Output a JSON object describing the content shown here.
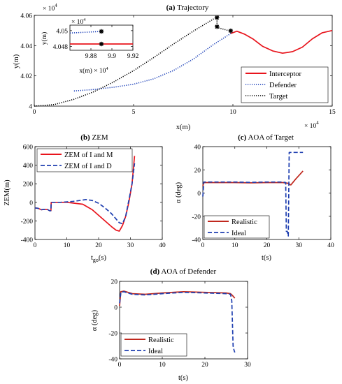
{
  "colors": {
    "interceptor": "#e8141c",
    "defender": "#1a3fb8",
    "target": "#000000",
    "realistic": "#c0281e",
    "ideal": "#1f3fb0"
  },
  "chart_data": [
    {
      "id": "a",
      "type": "line",
      "title_tag": "(a)",
      "title": "Trajectory",
      "xlabel": "x(m)",
      "ylabel": "y(m)",
      "x_multiplier": "× 10",
      "x_exponent": "4",
      "y_multiplier": "× 10",
      "y_exponent": "4",
      "xlim": [
        0,
        15
      ],
      "ylim": [
        4.0,
        4.06
      ],
      "xticks": [
        "0",
        "5",
        "10",
        "15"
      ],
      "yticks": [
        "4",
        "4.02",
        "4.04",
        "4.06"
      ],
      "legend_position": "lower-right",
      "series": [
        {
          "name": "Interceptor",
          "color": "#e8141c",
          "style": "solid",
          "x": [
            9.89,
            10.2,
            10.6,
            11.0,
            11.5,
            12.0,
            12.5,
            13.0,
            13.5,
            14.0,
            14.5,
            15.0
          ],
          "y": [
            4.048,
            4.0495,
            4.0475,
            4.0445,
            4.0395,
            4.0365,
            4.035,
            4.036,
            4.039,
            4.0445,
            4.0485,
            4.05
          ]
        },
        {
          "name": "Defender",
          "color": "#1a3fb8",
          "style": "dotted",
          "x": [
            2.0,
            3.0,
            4.0,
            5.0,
            6.0,
            7.0,
            8.0,
            9.0,
            9.89
          ],
          "y": [
            4.01,
            4.011,
            4.0125,
            4.0145,
            4.018,
            4.0235,
            4.031,
            4.0405,
            4.048
          ]
        },
        {
          "name": "Target",
          "color": "#000000",
          "style": "dotted",
          "x": [
            0.0,
            1.0,
            2.0,
            3.0,
            4.0,
            5.0,
            6.0,
            7.0,
            8.0,
            9.2,
            9.2,
            9.89
          ],
          "y": [
            4.0,
            4.001,
            4.0045,
            4.0095,
            4.016,
            4.0235,
            4.032,
            4.041,
            4.0495,
            4.059,
            4.052,
            4.0495
          ]
        }
      ],
      "markers": [
        {
          "x": 9.2,
          "y": 4.0585
        },
        {
          "x": 9.2,
          "y": 4.0525
        },
        {
          "x": 9.89,
          "y": 4.0498
        }
      ],
      "inset": {
        "xlabel": "x(m)",
        "ylabel": "y(m)",
        "x_multiplier": "× 10",
        "x_exponent": "4",
        "y_multiplier": "× 10",
        "y_exponent": "4",
        "xlim": [
          9.86,
          9.92
        ],
        "ylim": [
          4.0475,
          4.0507
        ],
        "xticks": [
          "9.88",
          "9.9",
          "9.92"
        ],
        "yticks": [
          "4.048",
          "4.05"
        ],
        "series": [
          {
            "color": "#1a3fb8",
            "style": "dotted",
            "x": [
              9.86,
              9.89
            ],
            "y": [
              4.0497,
              4.0499
            ]
          },
          {
            "color": "#e8141c",
            "style": "solid",
            "x": [
              9.86,
              9.92
            ],
            "y": [
              4.0483,
              4.0483
            ]
          }
        ],
        "markers": [
          {
            "x": 9.89,
            "y": 4.0499
          },
          {
            "x": 9.89,
            "y": 4.0483
          }
        ]
      }
    },
    {
      "id": "b",
      "type": "line",
      "title_tag": "(b)",
      "title": "ZEM",
      "xlabel_main": "t",
      "xlabel_sub": "go",
      "xlabel_tail": "(s)",
      "ylabel": "ZEM(m)",
      "xlim": [
        0,
        40
      ],
      "ylim": [
        -400,
        600
      ],
      "xticks": [
        "0",
        "10",
        "20",
        "30",
        "40"
      ],
      "yticks": [
        "-400",
        "-200",
        "0",
        "200",
        "400",
        "600"
      ],
      "legend_position": "top-left",
      "series": [
        {
          "name": "ZEM of I and M",
          "color": "#e8141c",
          "style": "solid",
          "x": [
            0,
            1,
            2,
            3,
            4,
            4.6,
            5,
            5.1,
            6,
            10,
            15,
            18,
            20,
            22,
            24,
            25.5,
            26.5,
            27.5,
            28.5,
            29.5,
            30.5,
            31.3
          ],
          "y": [
            -60,
            -65,
            -80,
            -75,
            -78,
            -90,
            -90,
            0,
            0,
            0,
            -20,
            -80,
            -140,
            -200,
            -260,
            -300,
            -310,
            -250,
            -150,
            0,
            200,
            500
          ]
        },
        {
          "name": "ZEM of I and D",
          "color": "#1f3fb0",
          "style": "dashed",
          "x": [
            0,
            1,
            2,
            3,
            4,
            4.6,
            5,
            5.1,
            8,
            12,
            16,
            18,
            20,
            22,
            24,
            25.5,
            26.5,
            27.5,
            28.5,
            29.5,
            30.5,
            31.3
          ],
          "y": [
            -60,
            -65,
            -80,
            -75,
            -78,
            -90,
            -90,
            0,
            0,
            10,
            30,
            20,
            -10,
            -60,
            -120,
            -180,
            -220,
            -230,
            -150,
            20,
            200,
            420
          ]
        }
      ]
    },
    {
      "id": "c",
      "type": "line",
      "title_tag": "(c)",
      "title": "AOA of Target",
      "xlabel": "t(s)",
      "ylabel": "α (deg)",
      "xlim": [
        0,
        40
      ],
      "ylim": [
        -40,
        40
      ],
      "xticks": [
        "0",
        "10",
        "20",
        "30",
        "40"
      ],
      "yticks": [
        "-40",
        "-20",
        "0",
        "20",
        "40"
      ],
      "legend_position": "lower-left",
      "series": [
        {
          "name": "Realistic",
          "color": "#c0281e",
          "style": "solid",
          "x": [
            0,
            0.3,
            5,
            10,
            15,
            20,
            25,
            26.5,
            27.5,
            29,
            31.3
          ],
          "y": [
            6,
            9,
            9,
            9,
            8.8,
            9,
            9,
            8.5,
            7,
            12,
            19
          ]
        },
        {
          "name": "Ideal",
          "color": "#1f3fb0",
          "style": "dashed",
          "x": [
            0,
            0.3,
            5,
            10,
            15,
            20,
            25,
            25.9,
            26.1,
            26.4,
            26.7,
            27,
            29,
            31.3
          ],
          "y": [
            -3,
            9.5,
            9.5,
            9.5,
            9.2,
            9.5,
            9.5,
            9,
            -33,
            -33,
            -37,
            35,
            35,
            35
          ]
        }
      ]
    },
    {
      "id": "d",
      "type": "line",
      "title_tag": "(d)",
      "title": "AOA of Defender",
      "xlabel": "t(s)",
      "ylabel": "α (deg)",
      "xlim": [
        0,
        30
      ],
      "ylim": [
        -40,
        20
      ],
      "xticks": [
        "0",
        "10",
        "20",
        "30"
      ],
      "yticks": [
        "-40",
        "-20",
        "0",
        "20"
      ],
      "legend_position": "lower-left",
      "series": [
        {
          "name": "Realistic",
          "color": "#c0281e",
          "style": "solid",
          "x": [
            0,
            0.3,
            1,
            3,
            6,
            10,
            15,
            20,
            25,
            26,
            26.5,
            27
          ],
          "y": [
            1,
            12,
            12.5,
            10.5,
            10,
            11,
            12,
            11.5,
            11,
            10.5,
            9,
            7
          ]
        },
        {
          "name": "Ideal",
          "color": "#1f3fb0",
          "style": "dashed",
          "x": [
            0,
            0.3,
            1,
            3,
            6,
            10,
            15,
            20,
            25,
            26,
            26.3,
            26.6,
            26.8,
            27
          ],
          "y": [
            3,
            11.5,
            12,
            10,
            9.5,
            10.5,
            11.5,
            11,
            10.5,
            10,
            5,
            -30,
            -33,
            -35
          ]
        }
      ]
    }
  ]
}
